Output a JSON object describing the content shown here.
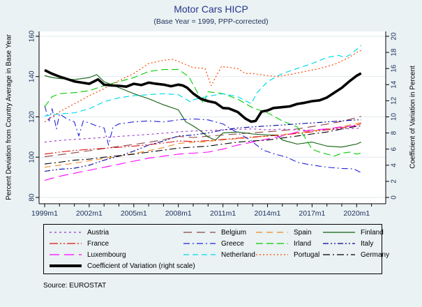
{
  "title": "Motor Cars HICP",
  "subtitle": "(Base Year = 1999, PPP-corrected)",
  "source_note": "Source: EUROSTAT",
  "colors": {
    "background": "#eaf2f3",
    "plot_background": "#ffffff",
    "grid": "#dfe9ee",
    "axis": "#000000",
    "title_text": "#26358c",
    "tick_text": "#1f3060"
  },
  "axes": {
    "left": {
      "title": "Percent Deviation from Country Average in Base Year",
      "ticks": [
        80,
        100,
        120,
        140,
        160
      ]
    },
    "right": {
      "title": "Coefficient of Variation in Percent",
      "ticks": [
        0,
        2,
        4,
        6,
        8,
        10,
        12,
        14,
        16,
        18,
        20
      ]
    },
    "x": {
      "minor_tick_years": [
        1999,
        2000,
        2001,
        2002,
        2003,
        2004,
        2005,
        2006,
        2007,
        2008,
        2009,
        2010,
        2011,
        2012,
        2013,
        2014,
        2015,
        2016,
        2017,
        2018,
        2019,
        2020,
        2021
      ],
      "major_tick_years": [
        1999,
        2002,
        2005,
        2008,
        2011,
        2014,
        2017,
        2020
      ],
      "major_tick_labels": [
        "1999m1",
        "2002m1",
        "2005m1",
        "2008m1",
        "2011m1",
        "2014m1",
        "2017m1",
        "2020m1"
      ]
    }
  },
  "chart_data": {
    "type": "line",
    "title": "Motor Cars HICP",
    "subtitle": "(Base Year = 1999, PPP-corrected)",
    "x_unit": "time in decimal years (monthly HICP data, 1999m1 - 2020m4)",
    "left_ylabel": "Percent Deviation from Country Average in Base Year",
    "right_ylabel": "Coefficient of Variation in Percent",
    "left_ylim": [
      77,
      162
    ],
    "right_ylim": [
      0,
      20.5
    ],
    "grid": "horizontal only",
    "legend_position": "bottom box, 4 columns",
    "x_yearly": [
      1999,
      2000,
      2001,
      2002,
      2003,
      2004,
      2005,
      2006,
      2007,
      2008,
      2009,
      2010,
      2011,
      2012,
      2013,
      2014,
      2015,
      2016,
      2017,
      2018,
      2019,
      2020,
      2020.3
    ],
    "series": [
      {
        "name": "Austria",
        "axis": "left",
        "color": "#9933cc",
        "dash": "3 4",
        "width": 1.1,
        "y": [
          107.5,
          108.3,
          108.8,
          109.3,
          109.8,
          110.3,
          110.8,
          111.3,
          111.9,
          112.6,
          113.0,
          113.2,
          113.6,
          113.8,
          114.0,
          113.6,
          113.9,
          113.5,
          113.3,
          113.6,
          114.0,
          114.3,
          114.4
        ]
      },
      {
        "name": "Belgium",
        "axis": "left",
        "color": "#8b4242",
        "dash": "12 7",
        "width": 1.1,
        "y": [
          100.2,
          101.2,
          102.2,
          103.2,
          104.3,
          105.4,
          106.3,
          107.4,
          108.6,
          110.3,
          109.8,
          110.4,
          111.0,
          111.6,
          112.1,
          112.6,
          113.2,
          114.0,
          115.2,
          116.4,
          117.8,
          119.6,
          120.3
        ]
      },
      {
        "name": "Spain",
        "axis": "left",
        "color": "#ee8822",
        "dash": "9 6",
        "width": 1.1,
        "y": [
          95.0,
          96.0,
          97.0,
          98.2,
          99.4,
          100.4,
          101.8,
          103.2,
          104.8,
          106.8,
          107.4,
          107.8,
          108.6,
          109.2,
          109.8,
          110.4,
          111.2,
          112.0,
          113.0,
          114.0,
          115.2,
          116.6,
          117.2
        ]
      },
      {
        "name": "Finland",
        "axis": "left",
        "color": "#0e600e",
        "dash": "",
        "width": 1.1,
        "x": [
          1999,
          1999.5,
          2000,
          2001,
          2002,
          2002.5,
          2003,
          2004,
          2005,
          2006,
          2007,
          2008,
          2008.5,
          2009,
          2009.5,
          2010,
          2010.5,
          2011,
          2012,
          2013,
          2014,
          2014.6,
          2015,
          2016,
          2017,
          2018,
          2019,
          2020,
          2020.3
        ],
        "y": [
          140.5,
          139.5,
          139.0,
          138.5,
          139.5,
          141.0,
          137.5,
          134.5,
          131.5,
          129.0,
          126.0,
          123.5,
          117.5,
          115.5,
          113.0,
          110.0,
          108.5,
          112.0,
          112.5,
          111.5,
          111.0,
          111.0,
          108.5,
          106.5,
          107.5,
          105.5,
          105.0,
          106.5,
          107.5
        ]
      },
      {
        "name": "France",
        "axis": "left",
        "color": "#dd1111",
        "dash": "12 3 2 3 2 3",
        "width": 1.1,
        "y": [
          101.5,
          102.5,
          103.3,
          103.9,
          104.4,
          104.9,
          105.5,
          106.2,
          107.0,
          108.0,
          107.8,
          108.2,
          108.8,
          109.4,
          110.0,
          110.5,
          111.0,
          111.8,
          112.6,
          113.6,
          114.6,
          116.0,
          116.6
        ]
      },
      {
        "name": "Greece",
        "axis": "left",
        "color": "#2222dd",
        "dash": "9 4 2 4",
        "width": 1.1,
        "x": [
          1999,
          1999.3,
          1999.5,
          1999.8,
          2000,
          2000.5,
          2001,
          2001.3,
          2001.6,
          2002,
          2002.5,
          2003,
          2003.3,
          2003.6,
          2004,
          2005,
          2006,
          2007,
          2008,
          2009,
          2010,
          2011,
          2012,
          2012.8,
          2013.7,
          2014.5,
          2015.3,
          2016,
          2016.6,
          2017.5,
          2018.2,
          2019,
          2019.8,
          2020.3
        ],
        "y": [
          125.5,
          118.0,
          124.0,
          114.0,
          121.5,
          119.0,
          117.5,
          110.5,
          118.0,
          117.0,
          115.5,
          114.5,
          106.0,
          115.0,
          116.5,
          117.5,
          118.0,
          117.5,
          118.5,
          119.0,
          118.5,
          116.5,
          112.0,
          108.7,
          103.5,
          101.5,
          100.0,
          97.5,
          96.6,
          95.5,
          94.9,
          94.4,
          94.2,
          92.3
        ]
      },
      {
        "name": "Irland",
        "axis": "left",
        "color": "#00cc00",
        "dash": "10 5",
        "width": 1.1,
        "x": [
          1999,
          1999.5,
          2000,
          2001,
          2002,
          2003,
          2004,
          2005,
          2006,
          2007,
          2008,
          2008.7,
          2009,
          2009.7,
          2010,
          2011,
          2012,
          2013,
          2014,
          2015,
          2016,
          2016.5,
          2017,
          2017.5,
          2018,
          2018.5,
          2019,
          2019.5,
          2020,
          2020.3
        ],
        "y": [
          125.0,
          130.0,
          131.5,
          132.0,
          133.0,
          135.5,
          137.5,
          139.5,
          142.5,
          143.5,
          143.5,
          140.0,
          136.0,
          126.5,
          132.5,
          131.5,
          128.8,
          124.5,
          122.0,
          118.0,
          115.0,
          110.0,
          104.0,
          102.5,
          101.5,
          100.5,
          102.0,
          102.5,
          101.5,
          102.0
        ]
      },
      {
        "name": "Italy",
        "axis": "left",
        "color": "#000099",
        "dash": "8 3 2 3 2 3",
        "width": 1.1,
        "y": [
          93.0,
          94.0,
          94.5,
          96.0,
          98.5,
          100.5,
          103.0,
          106.0,
          108.0,
          110.5,
          111.0,
          112.0,
          113.5,
          114.5,
          115.0,
          115.5,
          116.0,
          116.5,
          117.0,
          117.5,
          118.0,
          118.5,
          118.5
        ]
      },
      {
        "name": "Luxembourg",
        "axis": "left",
        "color": "#ff00ff",
        "dash": "14 7",
        "width": 1.1,
        "y": [
          88.5,
          90.5,
          92.0,
          93.5,
          95.0,
          96.5,
          98.0,
          99.5,
          100.5,
          101.5,
          102.0,
          102.5,
          104.0,
          106.0,
          107.5,
          109.0,
          110.5,
          112.5,
          113.5,
          114.0,
          115.0,
          115.5,
          115.5
        ]
      },
      {
        "name": "Netherland",
        "axis": "left",
        "color": "#00dde8",
        "dash": "8 5",
        "width": 1.2,
        "x": [
          1999,
          2000,
          2001,
          2002,
          2003,
          2004,
          2005,
          2006,
          2007,
          2008,
          2008.8,
          2009,
          2010,
          2011,
          2012,
          2012.9,
          2013.3,
          2014,
          2015,
          2016,
          2017,
          2018,
          2018.8,
          2019.2,
          2019.6,
          2020,
          2020.3
        ],
        "y": [
          120.5,
          121.5,
          122.0,
          124.0,
          127.5,
          129.5,
          130.5,
          131.0,
          131.5,
          131.0,
          127.5,
          128.5,
          130.2,
          131.5,
          130.0,
          126.5,
          132.0,
          137.5,
          141.5,
          144.0,
          146.5,
          149.5,
          150.5,
          149.5,
          151.0,
          153.5,
          155.5
        ]
      },
      {
        "name": "Portugal",
        "axis": "left",
        "color": "#ff4500",
        "dash": "2 3",
        "width": 1.2,
        "x": [
          1999,
          2000,
          2001,
          2002,
          2003,
          2004,
          2005,
          2006,
          2007,
          2007.6,
          2008,
          2009,
          2009.8,
          2010.2,
          2010.9,
          2011.5,
          2012,
          2012.5,
          2013,
          2014,
          2014.7,
          2015.5,
          2016.5,
          2017.5,
          2018.5,
          2019.5,
          2020,
          2020.3
        ],
        "y": [
          117.5,
          122.5,
          126.5,
          130.5,
          134.0,
          138.0,
          141.5,
          146.5,
          148.0,
          148.6,
          147.5,
          144.5,
          144.0,
          135.5,
          145.0,
          144.5,
          144.0,
          141.5,
          141.5,
          140.5,
          140.0,
          141.0,
          142.5,
          144.0,
          146.0,
          149.5,
          152.0,
          153.0
        ]
      },
      {
        "name": "Germany",
        "axis": "left",
        "color": "#000000",
        "dash": "10 4 2 4",
        "width": 1.1,
        "y": [
          96.6,
          97.5,
          98.5,
          99.0,
          100.0,
          100.7,
          101.5,
          102.5,
          103.5,
          104.5,
          105.0,
          105.5,
          106.5,
          107.5,
          108.0,
          108.5,
          109.5,
          110.5,
          111.5,
          112.5,
          114.0,
          115.3,
          115.5
        ]
      },
      {
        "name": "Coefficient of Variation (right scale)",
        "axis": "right",
        "color": "#000000",
        "dash": "",
        "width": 3.6,
        "x": [
          1999,
          1999.5,
          2000,
          2000.5,
          2001,
          2001.5,
          2002,
          2002.6,
          2003,
          2003.5,
          2004,
          2004.5,
          2005,
          2005.5,
          2006,
          2006.5,
          2007,
          2007.5,
          2008,
          2008.3,
          2008.6,
          2009,
          2009.5,
          2010,
          2010.5,
          2011,
          2011.4,
          2012,
          2012.5,
          2012.9,
          2013.2,
          2013.6,
          2014,
          2014.4,
          2015,
          2015.5,
          2016,
          2016.5,
          2017,
          2017.5,
          2018,
          2018.5,
          2019,
          2019.5,
          2020,
          2020.3
        ],
        "y": [
          15.8,
          15.35,
          15.0,
          14.7,
          14.4,
          14.25,
          14.1,
          14.65,
          14.0,
          13.9,
          13.85,
          13.75,
          14.1,
          13.95,
          14.25,
          14.1,
          14.0,
          13.8,
          14.0,
          13.9,
          13.6,
          12.9,
          12.25,
          11.95,
          11.75,
          11.1,
          11.05,
          10.6,
          9.8,
          9.4,
          9.5,
          10.65,
          10.8,
          11.1,
          11.2,
          11.3,
          11.6,
          11.75,
          11.95,
          12.05,
          12.4,
          13.0,
          13.6,
          14.4,
          15.1,
          15.4
        ]
      }
    ]
  }
}
